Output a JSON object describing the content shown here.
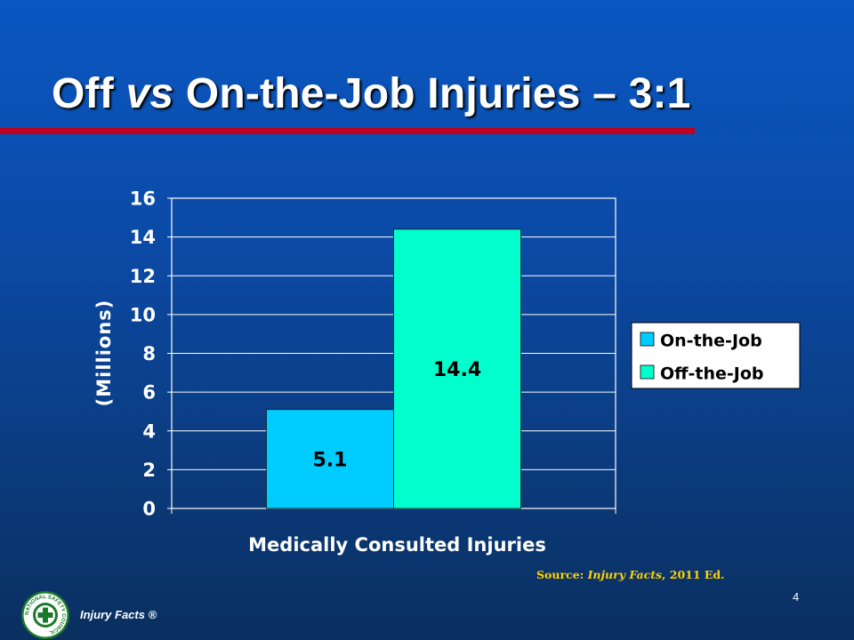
{
  "slide": {
    "title_part1": "Off ",
    "title_vs": "vs",
    "title_part2": " On-the-Job Injuries – 3:1",
    "page_number": "4"
  },
  "source": {
    "prefix": "Source: ",
    "title": "Injury Facts",
    "suffix": ", 2011 Ed."
  },
  "footer": {
    "brand": "Injury Facts ®",
    "logo_text": "NATIONAL SAFETY COUNCIL",
    "logo_icon": "green-cross-seal-icon"
  },
  "colors": {
    "accent_rule": "#c00020",
    "source_text": "#ffd200"
  },
  "chart_data": {
    "type": "bar",
    "categories": [
      "Medically Consulted Injuries"
    ],
    "series": [
      {
        "name": "On-the-Job",
        "values": [
          5.1
        ],
        "color": "#00ccff"
      },
      {
        "name": "Off-the-Job",
        "values": [
          14.4
        ],
        "color": "#00ffcc"
      }
    ],
    "data_labels": [
      "5.1",
      "14.4"
    ],
    "xlabel": "Medically Consulted Injuries",
    "ylabel": "(Millions)",
    "ylim": [
      0,
      16
    ],
    "yticks": [
      0,
      2,
      4,
      6,
      8,
      10,
      12,
      14,
      16
    ],
    "grid": true,
    "legend_position": "right"
  }
}
